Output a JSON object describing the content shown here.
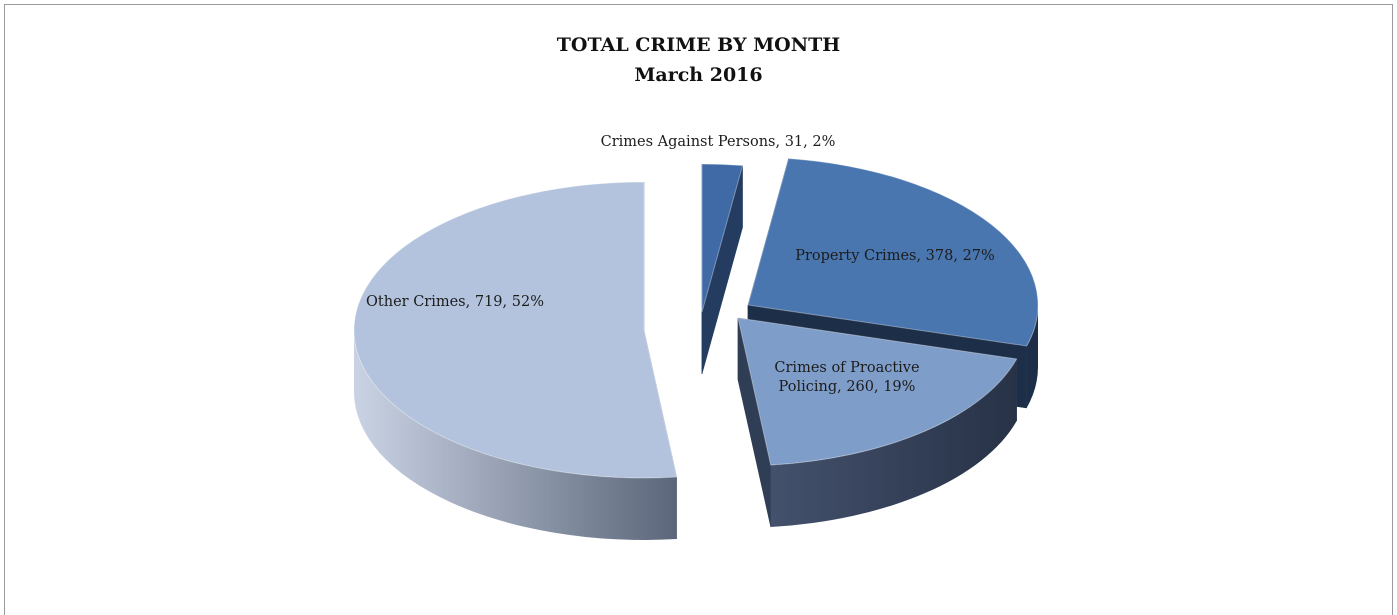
{
  "chart_data": {
    "type": "pie",
    "style": "3d-exploded",
    "title": "TOTAL CRIME BY MONTH",
    "subtitle": "March 2016",
    "slices": [
      {
        "name": "Crimes Against Persons",
        "value": 31,
        "percent": 2,
        "label": [
          "Crimes Against Persons, 31, 2%"
        ],
        "color": "#3f6aa5",
        "side_color": "#233c60"
      },
      {
        "name": "Property Crimes",
        "value": 378,
        "percent": 27,
        "label": [
          "Property Crimes, 378, 27%"
        ],
        "color": "#4a76b0",
        "side_color": "#1d2f48"
      },
      {
        "name": "Crimes of Proactive Policing",
        "value": 260,
        "percent": 19,
        "label": [
          "Crimes of Proactive",
          "Policing, 260, 19%"
        ],
        "color": "#7f9dc9",
        "side_color": "#2f3d55"
      },
      {
        "name": "Other Crimes",
        "value": 719,
        "percent": 52,
        "label": [
          "Other Crimes, 719, 52%"
        ],
        "color": "#b3c3dd",
        "side_color": "#7d8aa2"
      }
    ],
    "legend": "none"
  }
}
